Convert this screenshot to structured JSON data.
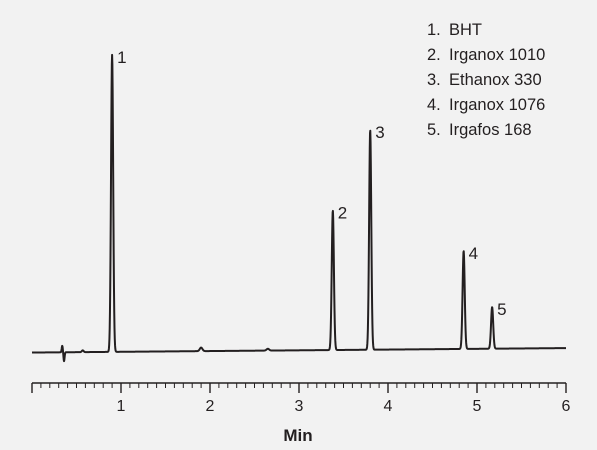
{
  "chart_data": {
    "type": "line",
    "title": "",
    "xlabel": "Min",
    "ylabel": "",
    "xlim": [
      0,
      6
    ],
    "ylim": [
      0,
      100
    ],
    "x_ticks": [
      1,
      2,
      3,
      4,
      5,
      6
    ],
    "x_tick_labels": [
      "1",
      "2",
      "3",
      "4",
      "5",
      "6"
    ],
    "grid": false,
    "legend_position": "top-right",
    "line_color": "#231f20",
    "background": "#f2f2f2",
    "baseline": 1.5,
    "baseline_end": 3.0,
    "peaks": [
      {
        "label": "1",
        "time": 0.9,
        "height": 100
      },
      {
        "label": "2",
        "time": 3.38,
        "height": 47
      },
      {
        "label": "3",
        "time": 3.8,
        "height": 74
      },
      {
        "label": "4",
        "time": 4.85,
        "height": 33
      },
      {
        "label": "5",
        "time": 5.17,
        "height": 14
      }
    ],
    "legend": [
      {
        "number": "1.",
        "name": "BHT"
      },
      {
        "number": "2.",
        "name": "Irganox 1010"
      },
      {
        "number": "3.",
        "name": "Ethanox 330"
      },
      {
        "number": "4.",
        "name": "Irganox 1076"
      },
      {
        "number": "5.",
        "name": "Irgafos 168"
      }
    ]
  }
}
